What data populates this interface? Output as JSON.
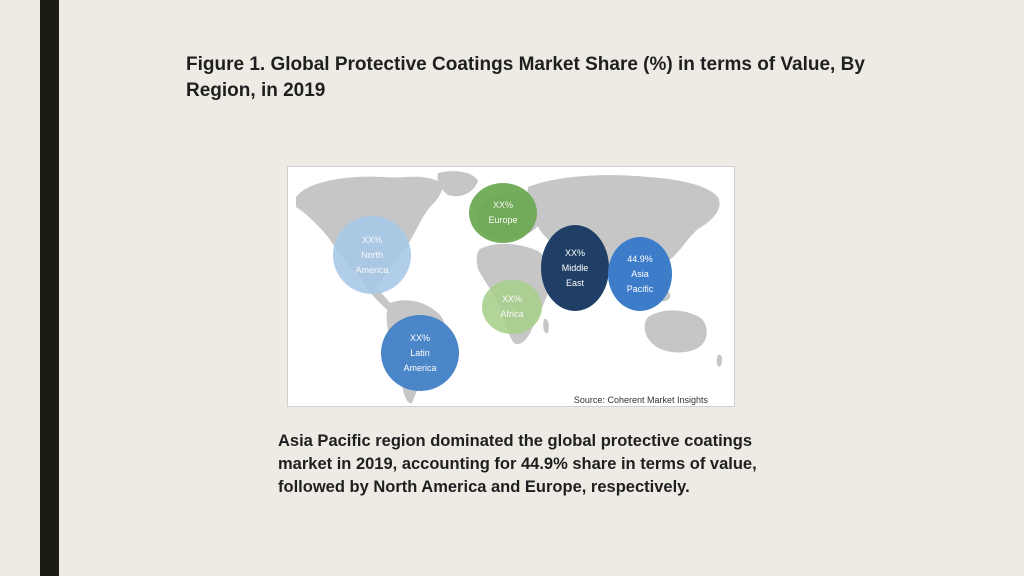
{
  "title": "Figure 1. Global Protective Coatings Market Share (%) in terms of Value, By Region, in 2019",
  "map": {
    "source": "Source: Coherent Market Insights",
    "regions": [
      {
        "id": "north-america",
        "value": "XX%",
        "name_line1": "North",
        "name_line2": "America",
        "color": "#a8c8e8"
      },
      {
        "id": "europe",
        "value": "XX%",
        "name_line1": "Europe",
        "name_line2": "",
        "color": "#6aa84f"
      },
      {
        "id": "middle-east",
        "value": "XX%",
        "name_line1": "Middle",
        "name_line2": "East",
        "color": "#1f3f66"
      },
      {
        "id": "asia-pacific",
        "value": "44.9%",
        "name_line1": "Asia",
        "name_line2": "Pacific",
        "color": "#3d7cc9"
      },
      {
        "id": "africa",
        "value": "XX%",
        "name_line1": "Africa",
        "name_line2": "",
        "color": "#a9d18e"
      },
      {
        "id": "latin-america",
        "value": "XX%",
        "name_line1": "Latin",
        "name_line2": "America",
        "color": "#4a86c8"
      }
    ]
  },
  "caption": "Asia Pacific region dominated the global protective coatings market in 2019, accounting for 44.9% share in terms of value, followed by North America and Europe, respectively."
}
